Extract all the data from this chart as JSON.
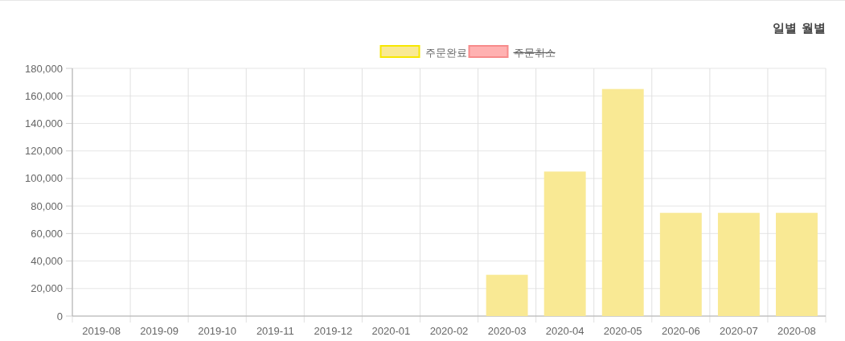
{
  "chart_data": {
    "type": "bar",
    "categories": [
      "2019-08",
      "2019-09",
      "2019-10",
      "2019-11",
      "2019-12",
      "2020-01",
      "2020-02",
      "2020-03",
      "2020-04",
      "2020-05",
      "2020-06",
      "2020-07",
      "2020-08"
    ],
    "series": [
      {
        "name": "주문완료",
        "color": "#f9e994",
        "values": [
          0,
          0,
          0,
          0,
          0,
          0,
          0,
          30000,
          105000,
          165000,
          75000,
          75000,
          75000
        ]
      },
      {
        "name": "주문취소",
        "color": "#ffb1b1",
        "values": [
          null,
          null,
          null,
          null,
          null,
          null,
          null,
          null,
          null,
          null,
          null,
          null,
          null
        ]
      }
    ],
    "ylim": [
      0,
      180000
    ],
    "yticks": [
      {
        "value": 0,
        "label": "0"
      },
      {
        "value": 20000,
        "label": "20,000"
      },
      {
        "value": 40000,
        "label": "40,000"
      },
      {
        "value": 60000,
        "label": "60,000"
      },
      {
        "value": 80000,
        "label": "80,000"
      },
      {
        "value": 100000,
        "label": "100,000"
      },
      {
        "value": 120000,
        "label": "120,000"
      },
      {
        "value": 140000,
        "label": "140,000"
      },
      {
        "value": 160000,
        "label": "160,000"
      },
      {
        "value": 180000,
        "label": "180,000"
      }
    ],
    "grid": true,
    "legend": "top",
    "annotations": [
      "일별",
      "월별"
    ]
  }
}
